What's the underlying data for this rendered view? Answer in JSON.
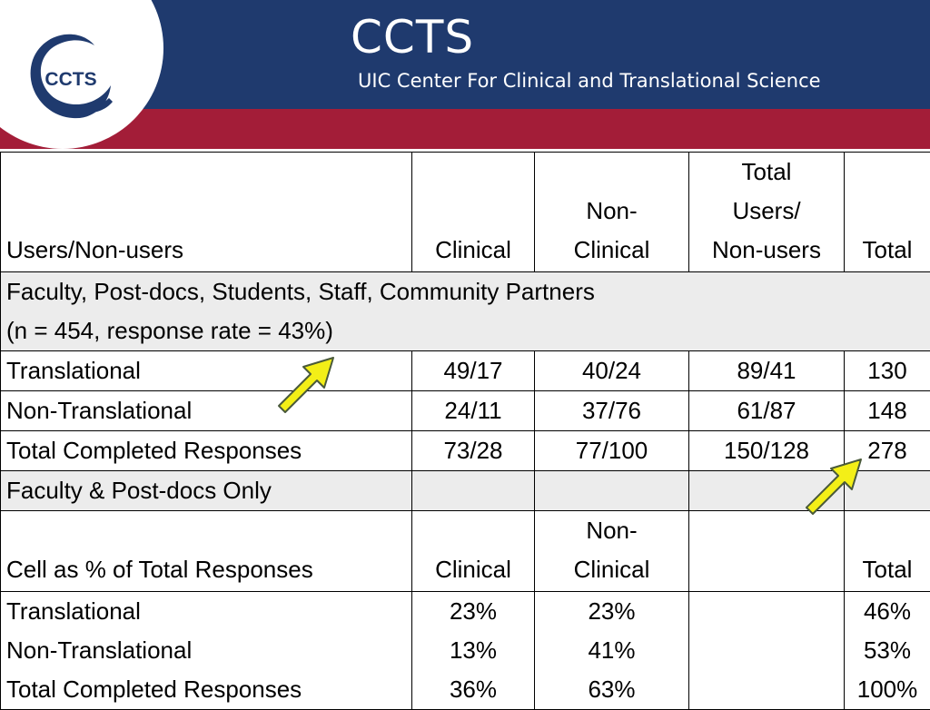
{
  "header": {
    "title": "CCTS",
    "subtitle": "UIC Center For Clinical and Translational Science",
    "logo_text": "CCTS",
    "colors": {
      "blue": "#1f3a6e",
      "red": "#a31d38",
      "arrow": "#f3ef17"
    }
  },
  "table": {
    "header1": {
      "label": "Users/Non-users",
      "clinical": "Clinical",
      "nonclinical": [
        "Non-",
        "Clinical"
      ],
      "total_users": [
        "Total",
        "Users/",
        "Non-users"
      ],
      "total": "Total"
    },
    "section1": {
      "line1": "Faculty, Post-docs, Students, Staff, Community Partners",
      "line2": "(n = 454, response rate = 43%)"
    },
    "rows1": [
      {
        "label": "Translational",
        "clinical": "49/17",
        "nonclinical": "40/24",
        "total_users": "89/41",
        "total": "130"
      },
      {
        "label": "Non-Translational",
        "clinical": "24/11",
        "nonclinical": "37/76",
        "total_users": "61/87",
        "total": "148"
      },
      {
        "label": "Total Completed Responses",
        "clinical": "73/28",
        "nonclinical": "77/100",
        "total_users": "150/128",
        "total": "278"
      }
    ],
    "section2": {
      "label": "Faculty & Post-docs Only"
    },
    "header2": {
      "label": "Cell as % of Total Responses",
      "clinical": "Clinical",
      "nonclinical": [
        "Non-",
        "Clinical"
      ],
      "total": "Total"
    },
    "rows2": [
      {
        "label": "Translational",
        "clinical": "23%",
        "nonclinical": "23%",
        "total": "46%"
      },
      {
        "label": "Non-Translational",
        "clinical": "13%",
        "nonclinical": "41%",
        "total": "53%"
      },
      {
        "label": "Total Completed Responses",
        "clinical": "36%",
        "nonclinical": "63%",
        "total": "100%"
      }
    ]
  },
  "annotations": {
    "arrows": [
      "arrow-up-right",
      "arrow-up-right"
    ]
  }
}
